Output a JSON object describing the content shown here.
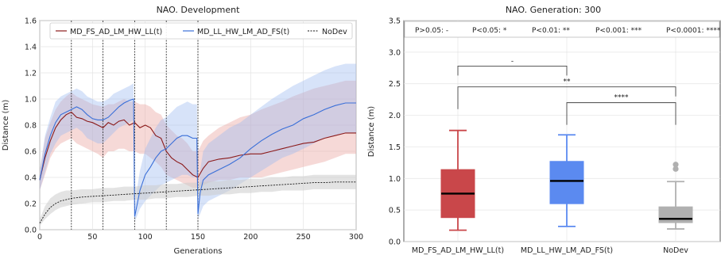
{
  "chart_data": [
    {
      "type": "line",
      "title": "NAO. Development",
      "xlabel": "Generations",
      "ylabel": "Distance (m)",
      "xlim": [
        0,
        300
      ],
      "ylim": [
        0,
        1.6
      ],
      "xticks": [
        "0",
        "50",
        "100",
        "150",
        "200",
        "250",
        "300"
      ],
      "yticks": [
        "0.0",
        "0.2",
        "0.4",
        "0.6",
        "0.8",
        "1.0",
        "1.2",
        "1.4",
        "1.6"
      ],
      "grid": true,
      "legend_position": "top",
      "vlines_x": [
        30,
        60,
        90,
        120,
        150
      ],
      "series": [
        {
          "name": "MD_FS_AD_LM_HW_LL(t)",
          "color": "#8b1a1a",
          "band_color": "#e8a09a",
          "style": "solid",
          "x": [
            0,
            5,
            10,
            15,
            20,
            25,
            30,
            35,
            40,
            45,
            50,
            55,
            60,
            65,
            70,
            75,
            80,
            85,
            90,
            95,
            100,
            105,
            110,
            115,
            120,
            125,
            130,
            135,
            140,
            145,
            150,
            155,
            160,
            170,
            180,
            190,
            200,
            210,
            220,
            230,
            240,
            250,
            260,
            270,
            280,
            290,
            300
          ],
          "y": [
            0.38,
            0.55,
            0.68,
            0.78,
            0.84,
            0.88,
            0.9,
            0.86,
            0.85,
            0.83,
            0.82,
            0.8,
            0.78,
            0.82,
            0.8,
            0.83,
            0.84,
            0.8,
            0.82,
            0.78,
            0.8,
            0.78,
            0.72,
            0.7,
            0.6,
            0.55,
            0.52,
            0.5,
            0.46,
            0.42,
            0.4,
            0.47,
            0.52,
            0.54,
            0.55,
            0.57,
            0.58,
            0.58,
            0.6,
            0.62,
            0.64,
            0.66,
            0.67,
            0.7,
            0.72,
            0.74,
            0.74
          ],
          "band_low": [
            0.3,
            0.42,
            0.55,
            0.62,
            0.66,
            0.68,
            0.7,
            0.66,
            0.64,
            0.62,
            0.6,
            0.58,
            0.55,
            0.6,
            0.6,
            0.62,
            0.62,
            0.6,
            0.6,
            0.58,
            0.58,
            0.55,
            0.52,
            0.48,
            0.42,
            0.4,
            0.38,
            0.36,
            0.34,
            0.32,
            0.32,
            0.34,
            0.36,
            0.38,
            0.38,
            0.4,
            0.4,
            0.4,
            0.42,
            0.44,
            0.46,
            0.48,
            0.5,
            0.52,
            0.55,
            0.58,
            0.58
          ],
          "band_high": [
            0.45,
            0.7,
            0.82,
            0.92,
            0.98,
            1.02,
            1.05,
            1.02,
            1.0,
            0.98,
            0.96,
            0.95,
            0.94,
            0.96,
            0.96,
            0.98,
            1.0,
            0.98,
            0.98,
            0.96,
            0.96,
            0.94,
            0.9,
            0.88,
            0.8,
            0.76,
            0.72,
            0.7,
            0.66,
            0.6,
            0.6,
            0.68,
            0.72,
            0.78,
            0.82,
            0.86,
            0.88,
            0.92,
            0.95,
            0.98,
            1.02,
            1.05,
            1.08,
            1.1,
            1.12,
            1.14,
            1.14
          ]
        },
        {
          "name": "MD_LL_HW_LM_AD_FS(t)",
          "color": "#3a6fd8",
          "band_color": "#9bb8f0",
          "style": "solid",
          "x": [
            0,
            5,
            10,
            15,
            20,
            25,
            30,
            35,
            40,
            45,
            50,
            55,
            60,
            65,
            70,
            75,
            80,
            85,
            89,
            90,
            92,
            95,
            100,
            105,
            110,
            115,
            120,
            125,
            130,
            135,
            140,
            145,
            149,
            150,
            152,
            155,
            160,
            170,
            180,
            190,
            200,
            210,
            220,
            230,
            240,
            250,
            260,
            270,
            280,
            290,
            300
          ],
          "y": [
            0.38,
            0.58,
            0.72,
            0.82,
            0.88,
            0.9,
            0.92,
            0.94,
            0.92,
            0.88,
            0.85,
            0.84,
            0.84,
            0.86,
            0.9,
            0.94,
            0.97,
            0.99,
            1.0,
            0.1,
            0.18,
            0.3,
            0.42,
            0.48,
            0.55,
            0.6,
            0.62,
            0.66,
            0.7,
            0.72,
            0.72,
            0.7,
            0.7,
            0.12,
            0.28,
            0.38,
            0.42,
            0.46,
            0.5,
            0.55,
            0.62,
            0.68,
            0.73,
            0.77,
            0.8,
            0.85,
            0.88,
            0.92,
            0.95,
            0.97,
            0.97
          ],
          "band_low": [
            0.3,
            0.44,
            0.58,
            0.66,
            0.72,
            0.74,
            0.76,
            0.78,
            0.75,
            0.7,
            0.68,
            0.66,
            0.66,
            0.7,
            0.74,
            0.78,
            0.8,
            0.82,
            0.84,
            0.06,
            0.1,
            0.16,
            0.22,
            0.26,
            0.3,
            0.34,
            0.36,
            0.38,
            0.4,
            0.42,
            0.42,
            0.4,
            0.4,
            0.08,
            0.12,
            0.18,
            0.22,
            0.26,
            0.3,
            0.35,
            0.4,
            0.45,
            0.5,
            0.55,
            0.58,
            0.62,
            0.66,
            0.7,
            0.72,
            0.74,
            0.74
          ],
          "band_high": [
            0.45,
            0.72,
            0.86,
            0.98,
            1.02,
            1.04,
            1.06,
            1.08,
            1.06,
            1.02,
            1.0,
            0.98,
            0.98,
            1.0,
            1.04,
            1.06,
            1.08,
            1.1,
            1.12,
            0.16,
            0.3,
            0.45,
            0.62,
            0.7,
            0.78,
            0.84,
            0.86,
            0.9,
            0.94,
            0.96,
            0.98,
            0.96,
            0.96,
            0.18,
            0.45,
            0.6,
            0.66,
            0.72,
            0.78,
            0.82,
            0.88,
            0.94,
            1.0,
            1.05,
            1.1,
            1.14,
            1.18,
            1.22,
            1.25,
            1.27,
            1.27
          ]
        },
        {
          "name": "NoDev",
          "color": "#111111",
          "band_color": "#cccccc",
          "style": "dashed",
          "x": [
            0,
            5,
            10,
            15,
            20,
            25,
            30,
            40,
            50,
            60,
            70,
            80,
            90,
            100,
            110,
            120,
            130,
            140,
            150,
            160,
            170,
            180,
            190,
            200,
            210,
            220,
            230,
            240,
            250,
            260,
            270,
            280,
            290,
            300
          ],
          "y": [
            0.05,
            0.12,
            0.17,
            0.2,
            0.22,
            0.23,
            0.24,
            0.25,
            0.255,
            0.26,
            0.265,
            0.27,
            0.275,
            0.28,
            0.285,
            0.29,
            0.295,
            0.3,
            0.305,
            0.31,
            0.315,
            0.32,
            0.325,
            0.33,
            0.335,
            0.34,
            0.345,
            0.35,
            0.355,
            0.36,
            0.36,
            0.365,
            0.365,
            0.365
          ],
          "band_low": [
            0.03,
            0.08,
            0.12,
            0.15,
            0.17,
            0.18,
            0.19,
            0.2,
            0.21,
            0.21,
            0.22,
            0.22,
            0.23,
            0.23,
            0.24,
            0.24,
            0.25,
            0.25,
            0.26,
            0.26,
            0.27,
            0.27,
            0.28,
            0.28,
            0.29,
            0.29,
            0.3,
            0.3,
            0.3,
            0.31,
            0.31,
            0.31,
            0.31,
            0.31
          ],
          "band_high": [
            0.08,
            0.18,
            0.24,
            0.27,
            0.29,
            0.3,
            0.3,
            0.31,
            0.31,
            0.32,
            0.32,
            0.33,
            0.33,
            0.34,
            0.34,
            0.35,
            0.35,
            0.36,
            0.36,
            0.37,
            0.37,
            0.38,
            0.38,
            0.39,
            0.39,
            0.4,
            0.4,
            0.41,
            0.41,
            0.42,
            0.42,
            0.42,
            0.42,
            0.42
          ]
        }
      ]
    },
    {
      "type": "box",
      "title": "NAO. Generation: 300",
      "xlabel": "",
      "ylabel": "Distance (m)",
      "ylim": [
        0,
        3.5
      ],
      "yticks": [
        "0.0",
        "0.5",
        "1.0",
        "1.5",
        "2.0",
        "2.5",
        "3.0",
        "3.5"
      ],
      "grid": true,
      "categories": [
        "MD_FS_AD_LM_HW_LL(t)",
        "MD_LL_HW_LM_AD_FS(t)",
        "NoDev"
      ],
      "boxes": [
        {
          "name": "MD_FS_AD_LM_HW_LL(t)",
          "color": "#c9474a",
          "whisker_low": 0.18,
          "q1": 0.38,
          "median": 0.76,
          "q3": 1.14,
          "whisker_high": 1.76,
          "outliers": []
        },
        {
          "name": "MD_LL_HW_LM_AD_FS(t)",
          "color": "#5b8af0",
          "whisker_low": 0.24,
          "q1": 0.6,
          "median": 0.96,
          "q3": 1.27,
          "whisker_high": 1.69,
          "outliers": []
        },
        {
          "name": "NoDev",
          "color": "#b0b0b0",
          "whisker_low": 0.2,
          "q1": 0.3,
          "median": 0.36,
          "q3": 0.55,
          "whisker_high": 0.95,
          "outliers": [
            1.15,
            1.22
          ]
        }
      ],
      "significance_legend": [
        "P>0.05: -",
        "P<0.05: *",
        "P<0.01: **",
        "P<0.001: ***",
        "P<0.0001: ****"
      ],
      "brackets": [
        {
          "from": 0,
          "to": 1,
          "y": 2.78,
          "label": "-"
        },
        {
          "from": 0,
          "to": 2,
          "y": 2.45,
          "label": "**"
        },
        {
          "from": 1,
          "to": 2,
          "y": 2.2,
          "label": "****"
        }
      ]
    }
  ]
}
